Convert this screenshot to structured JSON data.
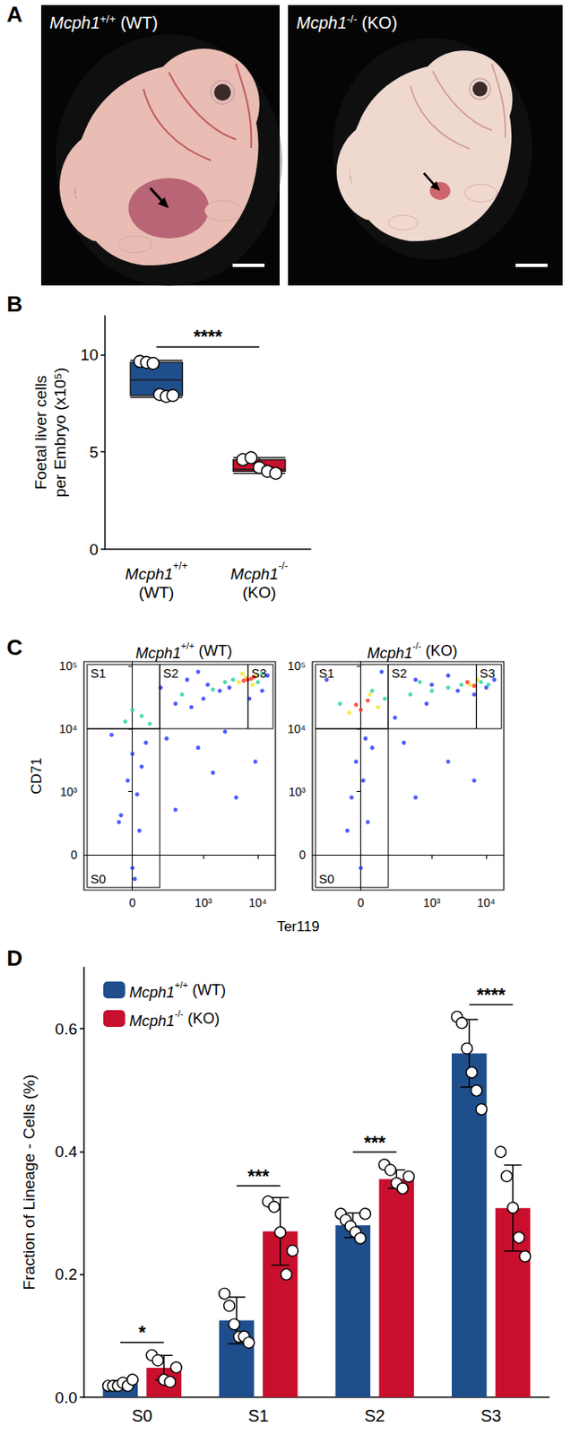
{
  "panel_a": {
    "panel": "A",
    "images": [
      {
        "title": "Mcph1+/+ (WT)"
      },
      {
        "title": "Mcph1-/- (KO)"
      }
    ]
  },
  "chart_data": [
    {
      "panel": "B",
      "type": "boxplot",
      "y_label": "Foetal liver cells per Embryo (x10⁵)",
      "categories": [
        "Mcph1+/+ (WT)",
        "Mcph1-/- (KO)"
      ],
      "colors": [
        "#1f4e8c",
        "#c8102e"
      ],
      "box": [
        [
          7.8,
          7.9,
          8.7,
          9.6,
          9.7
        ],
        [
          3.9,
          4.0,
          4.1,
          4.6,
          4.7
        ]
      ],
      "points": [
        [
          9.65,
          9.6,
          9.55,
          7.95,
          7.85,
          7.9
        ],
        [
          4.6,
          4.7,
          4.2,
          4.0,
          3.9
        ]
      ],
      "ylim": [
        0,
        12
      ],
      "yticks": [
        0,
        5,
        10
      ],
      "annotations": [
        {
          "text": "****",
          "from": 0,
          "to": 1
        }
      ]
    },
    {
      "panel": "C",
      "type": "scatter",
      "x_label": "Ter119",
      "y_label": "CD71",
      "xlim": [
        -380,
        21000
      ],
      "xticks": [
        0,
        {
          "value": 1000,
          "label": "10³"
        },
        {
          "value": 10000,
          "label": "10⁴"
        }
      ],
      "ylim": [
        -335,
        116000
      ],
      "yticks": [
        0,
        {
          "value": 1000,
          "label": "10³"
        },
        {
          "value": 10000,
          "label": "10⁴"
        },
        {
          "value": 100000,
          "label": "10⁵"
        }
      ],
      "gates": [
        {
          "label": "S0",
          "x": [
            -330,
            143
          ],
          "y": [
            -300,
            10000
          ]
        },
        {
          "label": "S1",
          "x": [
            -330,
            143
          ],
          "y": [
            10000,
            105000
          ]
        },
        {
          "label": "S2",
          "x": [
            143,
            6600
          ],
          "y": [
            10000,
            105000
          ]
        },
        {
          "label": "S3",
          "x": [
            6600,
            19000
          ],
          "y": [
            10000,
            105000
          ]
        }
      ],
      "facets": [
        {
          "title": "Mcph1+/+ (WT)",
          "series": [
            {
              "color": "#2233ff",
              "values": [
                [
                  0,
                  -100
                ],
                [
                  30,
                  200
                ],
                [
                  -50,
                  400
                ],
                [
                  20,
                  900
                ],
                [
                  -20,
                  1500
                ],
                [
                  40,
                  2500
                ],
                [
                  0,
                  4000
                ],
                [
                  60,
                  6000
                ],
                [
                  -60,
                  300
                ],
                [
                  10,
                  -200
                ],
                [
                  300,
                  500
                ],
                [
                  1500,
                  2000
                ],
                [
                  4000,
                  800
                ],
                [
                  800,
                  5000
                ],
                [
                  9000,
                  3000
                ],
                [
                  200,
                  7000
                ],
                [
                  2500,
                  9000
                ],
                [
                  -100,
                  8000
                ],
                [
                  300,
                  25000
                ],
                [
                  600,
                  22000
                ],
                [
                  1000,
                  30000
                ],
                [
                  2000,
                  40000
                ],
                [
                  3000,
                  45000
                ],
                [
                  1200,
                  50000
                ],
                [
                  500,
                  60000
                ],
                [
                  150,
                  45000
                ],
                [
                  7000,
                  30000
                ],
                [
                  12000,
                  40000
                ],
                [
                  15000,
                  70000
                ],
                [
                  800,
                  80000
                ]
              ]
            },
            {
              "color": "#22d49a",
              "values": [
                [
                  -30,
                  13000
                ],
                [
                  40,
                  16000
                ],
                [
                  80,
                  12000
                ],
                [
                  0,
                  20000
                ],
                [
                  400,
                  35000
                ],
                [
                  1500,
                  42000
                ],
                [
                  2500,
                  55000
                ],
                [
                  3500,
                  60000
                ],
                [
                  10000,
                  55000
                ],
                [
                  12000,
                  75000
                ]
              ]
            },
            {
              "color": "#f5e51b",
              "values": [
                [
                  4500,
                  55000
                ],
                [
                  6000,
                  65000
                ],
                [
                  8000,
                  50000
                ],
                [
                  9500,
                  70000
                ],
                [
                  5200,
                  75000
                ]
              ]
            },
            {
              "color": "#ff2a1a",
              "values": [
                [
                  6500,
                  60000
                ],
                [
                  7500,
                  62000
                ],
                [
                  5500,
                  58000
                ],
                [
                  8500,
                  66000
                ]
              ]
            }
          ]
        },
        {
          "title": "Mcph1-/- (KO)",
          "series": [
            {
              "color": "#2233ff",
              "values": [
                [
                  0,
                  -100
                ],
                [
                  30,
                  300
                ],
                [
                  -40,
                  800
                ],
                [
                  10,
                  1500
                ],
                [
                  -20,
                  3000
                ],
                [
                  50,
                  5000
                ],
                [
                  20,
                  7000
                ],
                [
                  -60,
                  200
                ],
                [
                  500,
                  800
                ],
                [
                  2000,
                  3000
                ],
                [
                  6000,
                  1500
                ],
                [
                  300,
                  6000
                ],
                [
                  -200,
                  60000
                ],
                [
                  100,
                  80000
                ],
                [
                  500,
                  60000
                ],
                [
                  1000,
                  50000
                ],
                [
                  3000,
                  40000
                ],
                [
                  6000,
                  35000
                ],
                [
                  10000,
                  45000
                ],
                [
                  14000,
                  60000
                ],
                [
                  800,
                  25000
                ],
                [
                  200,
                  15000
                ],
                [
                  2000,
                  70000
                ]
              ]
            },
            {
              "color": "#22d49a",
              "values": [
                [
                  -100,
                  25000
                ],
                [
                  120,
                  30000
                ],
                [
                  50,
                  40000
                ],
                [
                  400,
                  35000
                ],
                [
                  1000,
                  40000
                ],
                [
                  2000,
                  45000
                ],
                [
                  3500,
                  50000
                ],
                [
                  8000,
                  55000
                ],
                [
                  11000,
                  50000
                ],
                [
                  600,
                  55000
                ]
              ]
            },
            {
              "color": "#f5e51b",
              "values": [
                [
                  -50,
                  18000
                ],
                [
                  80,
                  22000
                ],
                [
                  40,
                  35000
                ],
                [
                  5000,
                  50000
                ],
                [
                  7000,
                  60000
                ]
              ]
            },
            {
              "color": "#ff2a1a",
              "values": [
                [
                  0,
                  20000
                ],
                [
                  30,
                  28000
                ],
                [
                  -20,
                  24000
                ],
                [
                  6000,
                  48000
                ],
                [
                  4500,
                  55000
                ]
              ]
            }
          ]
        }
      ]
    },
    {
      "panel": "D",
      "type": "bar",
      "y_label": "Fraction of Lineage - Cells (%)",
      "categories": [
        "S0",
        "S1",
        "S2",
        "S3"
      ],
      "series": [
        {
          "name": "Mcph1+/+ (WT)",
          "color": "#1f4e8c",
          "values": [
            0.022,
            0.125,
            0.28,
            0.56
          ],
          "errors": [
            0.005,
            0.038,
            0.02,
            0.055
          ],
          "points": [
            [
              0.02,
              0.02,
              0.02,
              0.025,
              0.02,
              0.03
            ],
            [
              0.17,
              0.15,
              0.12,
              0.1,
              0.1,
              0.09
            ],
            [
              0.3,
              0.29,
              0.28,
              0.27,
              0.26,
              0.3
            ],
            [
              0.62,
              0.61,
              0.57,
              0.53,
              0.5,
              0.47
            ]
          ]
        },
        {
          "name": "Mcph1-/- (KO)",
          "color": "#c8102e",
          "values": [
            0.048,
            0.27,
            0.355,
            0.308
          ],
          "errors": [
            0.02,
            0.055,
            0.015,
            0.07
          ],
          "points": [
            [
              0.07,
              0.06,
              0.03,
              0.025,
              0.05
            ],
            [
              0.32,
              0.31,
              0.27,
              0.2,
              0.24
            ],
            [
              0.38,
              0.37,
              0.35,
              0.34,
              0.36
            ],
            [
              0.4,
              0.36,
              0.31,
              0.26,
              0.23
            ]
          ]
        }
      ],
      "ylim": [
        0,
        0.7
      ],
      "yticks": [
        {
          "value": 0,
          "label": "0.0"
        },
        0.2,
        0.4,
        0.6
      ],
      "legend": "top-left",
      "annotations": [
        {
          "category": "S0",
          "text": "*"
        },
        {
          "category": "S1",
          "text": "***"
        },
        {
          "category": "S2",
          "text": "***"
        },
        {
          "category": "S3",
          "text": "****"
        }
      ]
    }
  ]
}
